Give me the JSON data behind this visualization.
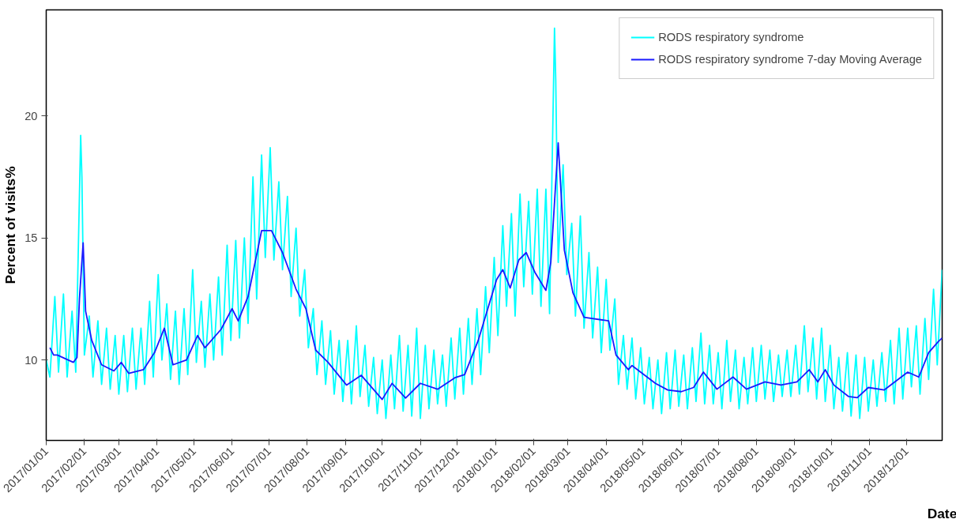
{
  "chart_data": {
    "type": "line",
    "xlabel": "Date",
    "ylabel": "Percent of visits%",
    "xlim": [
      "2017-01-01",
      "2018-12-30"
    ],
    "ylim": [
      6.7,
      24.35
    ],
    "yticks": [
      10,
      15,
      20
    ],
    "xticks": [
      {
        "value": "2017-01-01",
        "label": "2017/01/01"
      },
      {
        "value": "2017-02-01",
        "label": "2017/02/01"
      },
      {
        "value": "2017-03-01",
        "label": "2017/03/01"
      },
      {
        "value": "2017-04-01",
        "label": "2017/04/01"
      },
      {
        "value": "2017-05-01",
        "label": "2017/05/01"
      },
      {
        "value": "2017-06-01",
        "label": "2017/06/01"
      },
      {
        "value": "2017-07-01",
        "label": "2017/07/01"
      },
      {
        "value": "2017-08-01",
        "label": "2017/08/01"
      },
      {
        "value": "2017-09-01",
        "label": "2017/09/01"
      },
      {
        "value": "2017-10-01",
        "label": "2017/10/01"
      },
      {
        "value": "2017-11-01",
        "label": "2017/11/01"
      },
      {
        "value": "2017-12-01",
        "label": "2017/12/01"
      },
      {
        "value": "2018-01-01",
        "label": "2018/01/01"
      },
      {
        "value": "2018-02-01",
        "label": "2018/02/01"
      },
      {
        "value": "2018-03-01",
        "label": "2018/03/01"
      },
      {
        "value": "2018-04-01",
        "label": "2018/04/01"
      },
      {
        "value": "2018-05-01",
        "label": "2018/05/01"
      },
      {
        "value": "2018-06-01",
        "label": "2018/06/01"
      },
      {
        "value": "2018-07-01",
        "label": "2018/07/01"
      },
      {
        "value": "2018-08-01",
        "label": "2018/08/01"
      },
      {
        "value": "2018-09-01",
        "label": "2018/09/01"
      },
      {
        "value": "2018-10-01",
        "label": "2018/10/01"
      },
      {
        "value": "2018-11-01",
        "label": "2018/11/01"
      },
      {
        "value": "2018-12-01",
        "label": "2018/12/01"
      }
    ],
    "grid": false,
    "legend": "top right",
    "line_style": "solid",
    "marker": "none",
    "series": [
      {
        "name": "RODS respiratory syndrome",
        "color": "#00ffff",
        "x": [
          "2017-01-01",
          "2017-01-04",
          "2017-01-08",
          "2017-01-11",
          "2017-01-15",
          "2017-01-18",
          "2017-01-22",
          "2017-01-25",
          "2017-01-29",
          "2017-01-30",
          "2017-02-01",
          "2017-02-05",
          "2017-02-08",
          "2017-02-12",
          "2017-02-15",
          "2017-02-19",
          "2017-02-22",
          "2017-02-26",
          "2017-03-01",
          "2017-03-05",
          "2017-03-08",
          "2017-03-12",
          "2017-03-15",
          "2017-03-19",
          "2017-03-22",
          "2017-03-26",
          "2017-03-29",
          "2017-04-02",
          "2017-04-05",
          "2017-04-09",
          "2017-04-12",
          "2017-04-16",
          "2017-04-19",
          "2017-04-23",
          "2017-04-26",
          "2017-04-30",
          "2017-05-03",
          "2017-05-07",
          "2017-05-10",
          "2017-05-14",
          "2017-05-17",
          "2017-05-21",
          "2017-05-24",
          "2017-05-28",
          "2017-05-31",
          "2017-06-04",
          "2017-06-07",
          "2017-06-11",
          "2017-06-14",
          "2017-06-18",
          "2017-06-21",
          "2017-06-25",
          "2017-06-28",
          "2017-07-02",
          "2017-07-05",
          "2017-07-09",
          "2017-07-12",
          "2017-07-16",
          "2017-07-19",
          "2017-07-23",
          "2017-07-26",
          "2017-07-30",
          "2017-08-02",
          "2017-08-06",
          "2017-08-09",
          "2017-08-13",
          "2017-08-16",
          "2017-08-20",
          "2017-08-23",
          "2017-08-27",
          "2017-08-30",
          "2017-09-03",
          "2017-09-06",
          "2017-09-10",
          "2017-09-13",
          "2017-09-17",
          "2017-09-20",
          "2017-09-24",
          "2017-09-27",
          "2017-10-01",
          "2017-10-04",
          "2017-10-08",
          "2017-10-11",
          "2017-10-15",
          "2017-10-18",
          "2017-10-22",
          "2017-10-25",
          "2017-10-29",
          "2017-11-01",
          "2017-11-05",
          "2017-11-08",
          "2017-11-12",
          "2017-11-15",
          "2017-11-19",
          "2017-11-22",
          "2017-11-26",
          "2017-11-29",
          "2017-12-03",
          "2017-12-06",
          "2017-12-10",
          "2017-12-13",
          "2017-12-17",
          "2017-12-20",
          "2017-12-24",
          "2017-12-27",
          "2017-12-31",
          "2018-01-03",
          "2018-01-07",
          "2018-01-10",
          "2018-01-14",
          "2018-01-17",
          "2018-01-21",
          "2018-01-24",
          "2018-01-28",
          "2018-01-31",
          "2018-02-04",
          "2018-02-07",
          "2018-02-11",
          "2018-02-14",
          "2018-02-18",
          "2018-02-19",
          "2018-02-21",
          "2018-02-25",
          "2018-02-28",
          "2018-03-04",
          "2018-03-07",
          "2018-03-11",
          "2018-03-14",
          "2018-03-18",
          "2018-03-21",
          "2018-03-25",
          "2018-03-28",
          "2018-04-01",
          "2018-04-04",
          "2018-04-08",
          "2018-04-11",
          "2018-04-15",
          "2018-04-18",
          "2018-04-22",
          "2018-04-25",
          "2018-04-29",
          "2018-05-02",
          "2018-05-06",
          "2018-05-09",
          "2018-05-13",
          "2018-05-16",
          "2018-05-20",
          "2018-05-23",
          "2018-05-27",
          "2018-05-30",
          "2018-06-03",
          "2018-06-06",
          "2018-06-10",
          "2018-06-13",
          "2018-06-17",
          "2018-06-20",
          "2018-06-24",
          "2018-06-27",
          "2018-07-01",
          "2018-07-04",
          "2018-07-08",
          "2018-07-11",
          "2018-07-15",
          "2018-07-18",
          "2018-07-22",
          "2018-07-25",
          "2018-07-29",
          "2018-08-01",
          "2018-08-05",
          "2018-08-08",
          "2018-08-12",
          "2018-08-15",
          "2018-08-19",
          "2018-08-22",
          "2018-08-26",
          "2018-08-29",
          "2018-09-02",
          "2018-09-05",
          "2018-09-09",
          "2018-09-12",
          "2018-09-16",
          "2018-09-19",
          "2018-09-23",
          "2018-09-26",
          "2018-09-30",
          "2018-10-03",
          "2018-10-07",
          "2018-10-10",
          "2018-10-14",
          "2018-10-17",
          "2018-10-21",
          "2018-10-24",
          "2018-10-28",
          "2018-10-31",
          "2018-11-04",
          "2018-11-07",
          "2018-11-11",
          "2018-11-14",
          "2018-11-18",
          "2018-11-21",
          "2018-11-25",
          "2018-11-28",
          "2018-12-02",
          "2018-12-05",
          "2018-12-09",
          "2018-12-12",
          "2018-12-16",
          "2018-12-19",
          "2018-12-23",
          "2018-12-26",
          "2018-12-30"
        ],
        "values": [
          10.0,
          9.3,
          12.6,
          9.5,
          12.7,
          9.3,
          12.0,
          9.5,
          19.2,
          17.5,
          10.2,
          11.8,
          9.3,
          11.6,
          9.0,
          11.3,
          8.8,
          11.0,
          8.6,
          11.0,
          8.7,
          11.3,
          8.8,
          11.3,
          9.0,
          12.4,
          9.3,
          13.5,
          10.0,
          12.3,
          9.2,
          12.0,
          9.0,
          12.1,
          9.4,
          13.7,
          9.9,
          12.4,
          9.7,
          12.7,
          10.0,
          13.4,
          10.2,
          14.7,
          10.8,
          14.9,
          10.9,
          15.0,
          11.5,
          17.5,
          12.5,
          18.4,
          14.2,
          18.7,
          14.1,
          17.3,
          13.7,
          16.7,
          12.6,
          15.4,
          11.8,
          13.7,
          10.5,
          12.1,
          9.4,
          11.6,
          9.0,
          11.2,
          8.6,
          10.8,
          8.3,
          10.8,
          8.2,
          11.4,
          8.5,
          10.6,
          8.1,
          10.1,
          7.8,
          10.0,
          7.6,
          10.2,
          8.0,
          11.0,
          7.9,
          10.6,
          7.7,
          11.3,
          7.6,
          10.6,
          8.0,
          10.4,
          8.2,
          10.2,
          8.1,
          10.9,
          8.4,
          11.3,
          8.6,
          11.7,
          9.0,
          12.1,
          9.4,
          13.0,
          10.3,
          14.2,
          11.0,
          15.5,
          12.2,
          16.0,
          11.8,
          16.8,
          13.0,
          16.5,
          12.7,
          17.0,
          12.2,
          17.0,
          11.9,
          23.6,
          21.5,
          14.0,
          18.0,
          13.5,
          15.6,
          11.8,
          15.9,
          11.3,
          14.4,
          10.9,
          13.8,
          10.3,
          13.3,
          10.4,
          12.5,
          9.0,
          11.0,
          8.8,
          10.9,
          8.4,
          10.5,
          8.2,
          10.1,
          8.0,
          10.0,
          7.8,
          10.3,
          8.0,
          10.4,
          8.1,
          10.2,
          8.0,
          10.5,
          8.3,
          11.1,
          8.2,
          10.6,
          8.2,
          10.3,
          8.0,
          10.8,
          8.3,
          10.4,
          8.0,
          10.1,
          8.2,
          10.5,
          8.3,
          10.6,
          8.4,
          10.4,
          8.3,
          10.2,
          8.5,
          10.4,
          8.5,
          10.6,
          8.6,
          11.4,
          8.7,
          10.9,
          8.4,
          11.3,
          8.3,
          10.6,
          8.0,
          10.1,
          7.9,
          10.3,
          7.7,
          10.2,
          7.6,
          10.1,
          7.9,
          10.0,
          8.1,
          10.3,
          8.3,
          10.8,
          8.2,
          11.3,
          8.4,
          11.3,
          8.9,
          11.4,
          8.6,
          11.7,
          9.2,
          12.9,
          9.8,
          13.7
        ]
      },
      {
        "name": "RODS respiratory syndrome 7-day Moving Average",
        "color": "#1a1aff",
        "x": [
          "2017-01-04",
          "2017-01-07",
          "2017-01-10",
          "2017-01-23",
          "2017-01-26",
          "2017-01-28",
          "2017-01-31",
          "2017-02-02",
          "2017-02-07",
          "2017-02-15",
          "2017-02-25",
          "2017-03-03",
          "2017-03-09",
          "2017-03-21",
          "2017-03-30",
          "2017-04-07",
          "2017-04-14",
          "2017-04-25",
          "2017-05-04",
          "2017-05-10",
          "2017-05-23",
          "2017-06-01",
          "2017-06-06",
          "2017-06-14",
          "2017-06-25",
          "2017-07-03",
          "2017-07-12",
          "2017-07-23",
          "2017-07-31",
          "2017-08-08",
          "2017-08-18",
          "2017-09-02",
          "2017-09-14",
          "2017-10-01",
          "2017-10-09",
          "2017-10-20",
          "2017-11-01",
          "2017-11-15",
          "2017-11-29",
          "2017-12-07",
          "2017-12-18",
          "2017-12-27",
          "2018-01-02",
          "2018-01-07",
          "2018-01-13",
          "2018-01-20",
          "2018-01-26",
          "2018-02-02",
          "2018-02-11",
          "2018-02-15",
          "2018-02-21",
          "2018-02-26",
          "2018-03-05",
          "2018-03-14",
          "2018-04-03",
          "2018-04-09",
          "2018-04-19",
          "2018-04-22",
          "2018-05-11",
          "2018-05-21",
          "2018-06-01",
          "2018-06-11",
          "2018-06-19",
          "2018-06-30",
          "2018-07-13",
          "2018-07-24",
          "2018-08-08",
          "2018-08-21",
          "2018-09-03",
          "2018-09-13",
          "2018-09-20",
          "2018-09-26",
          "2018-10-03",
          "2018-10-15",
          "2018-10-22",
          "2018-10-31",
          "2018-11-13",
          "2018-12-02",
          "2018-12-11",
          "2018-12-19",
          "2018-12-27",
          "2018-12-30"
        ],
        "values": [
          10.5,
          10.2,
          10.2,
          9.9,
          10.1,
          12.5,
          14.8,
          12.0,
          10.8,
          9.8,
          9.55,
          9.9,
          9.45,
          9.6,
          10.3,
          11.3,
          9.8,
          10.0,
          11.0,
          10.5,
          11.25,
          12.1,
          11.6,
          12.6,
          15.3,
          15.3,
          14.4,
          12.9,
          12.1,
          10.4,
          9.9,
          8.97,
          9.37,
          8.38,
          9.04,
          8.44,
          9.04,
          8.8,
          9.27,
          9.4,
          10.8,
          12.3,
          13.3,
          13.7,
          12.95,
          14.1,
          14.4,
          13.6,
          12.85,
          14.0,
          18.9,
          14.5,
          12.75,
          11.75,
          11.6,
          10.2,
          9.6,
          9.77,
          9.04,
          8.77,
          8.7,
          8.87,
          9.5,
          8.8,
          9.3,
          8.8,
          9.1,
          8.97,
          9.1,
          9.6,
          9.1,
          9.6,
          8.97,
          8.5,
          8.45,
          8.87,
          8.77,
          9.5,
          9.3,
          10.3,
          10.76,
          10.9
        ]
      }
    ]
  }
}
